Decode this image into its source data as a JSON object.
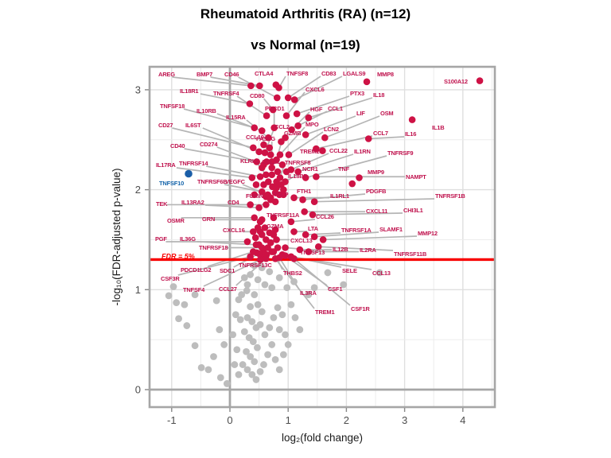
{
  "figure": {
    "title_line1": "Rheumatoid Arthritis (RA) (n=12)",
    "title_line2": "vs Normal (n=19)"
  },
  "chart_data": {
    "type": "scatter",
    "title": "Rheumatoid Arthritis (RA) (n=12) vs Normal (n=19)",
    "xlabel": "log₂(fold change)",
    "ylabel": "-log₁₀(FDR-adjusted p-value)",
    "xlim": [
      -1.38,
      4.55
    ],
    "ylim": [
      -0.18,
      3.23
    ],
    "x_ticks": [
      -1,
      0,
      1,
      2,
      3,
      4
    ],
    "y_ticks": [
      0,
      1,
      2,
      3
    ],
    "grid": "major and minor (0.5 steps), light gray; heavy gray zero lines",
    "legend": "none",
    "threshold": {
      "y": 1.301,
      "label": "FDR = 5%",
      "color": "#F80000"
    },
    "colors": {
      "up_point": "#CE1245",
      "gene_label": "#C0134E",
      "down_point": "#1A5EA8",
      "down_label": "#1464AA",
      "nonsignificant": "#BDBDBD",
      "leader_line": "#B5B5B5",
      "grid_minor": "#ECECEC",
      "grid_major": "#DFDFDF",
      "panel_border": "#A6A6A6"
    },
    "genes_format": [
      "name",
      "log2fc",
      "neglog10fdr",
      "label_px_x",
      "label_px_y",
      "no_leader_line"
    ],
    "genes_up": [
      [
        "AREG",
        0.36,
        3.04,
        199,
        96,
        0
      ],
      [
        "BMP7",
        0.51,
        3.04,
        247,
        96,
        0
      ],
      [
        "CD46",
        0.81,
        2.92,
        282,
        96,
        0
      ],
      [
        "CTLA4",
        0.79,
        3.05,
        320,
        95,
        0
      ],
      [
        "TNFSF8",
        0.84,
        3.02,
        360,
        95,
        0
      ],
      [
        "CD83",
        1.0,
        2.92,
        404,
        95,
        0
      ],
      [
        "LGALS9",
        1.11,
        2.9,
        431,
        95,
        0
      ],
      [
        "MMP8",
        2.35,
        3.08,
        474,
        96,
        1
      ],
      [
        "S100A12",
        4.29,
        3.09,
        558,
        105,
        1
      ],
      [
        "IL18R1",
        0.34,
        2.86,
        226,
        117,
        0
      ],
      [
        "TNFRSF4",
        0.63,
        2.74,
        268,
        120,
        0
      ],
      [
        "CD80",
        0.74,
        2.8,
        314,
        123,
        0
      ],
      [
        "CXCL6",
        0.97,
        2.74,
        384,
        115,
        0
      ],
      [
        "PTX3",
        1.15,
        2.76,
        440,
        120,
        0
      ],
      [
        "IL18",
        1.35,
        2.72,
        469,
        122,
        0
      ],
      [
        "TNFSF18",
        0.42,
        2.62,
        201,
        136,
        0
      ],
      [
        "IL10RB",
        0.55,
        2.59,
        247,
        142,
        0
      ],
      [
        "IL15RA",
        0.66,
        2.52,
        284,
        150,
        0
      ],
      [
        "PDCD1",
        0.76,
        2.62,
        333,
        139,
        0
      ],
      [
        "HGF",
        1.06,
        2.6,
        390,
        140,
        0
      ],
      [
        "CCL1",
        1.17,
        2.64,
        412,
        139,
        0
      ],
      [
        "LIF",
        1.3,
        2.55,
        448,
        145,
        0
      ],
      [
        "OSM",
        1.63,
        2.52,
        478,
        145,
        0
      ],
      [
        "IL1B",
        3.13,
        2.7,
        543,
        163,
        1
      ],
      [
        "CD27",
        0.4,
        2.42,
        199,
        160,
        0
      ],
      [
        "IL6ST",
        0.5,
        2.38,
        233,
        160,
        0
      ],
      [
        "CCL2",
        0.6,
        2.37,
        345,
        162,
        0
      ],
      [
        "MPO",
        0.86,
        2.35,
        384,
        159,
        0
      ],
      [
        "LCN2",
        1.01,
        2.35,
        407,
        165,
        0
      ],
      [
        "CCL7",
        1.48,
        2.41,
        469,
        170,
        0
      ],
      [
        "IL16",
        2.38,
        2.51,
        509,
        171,
        0
      ],
      [
        "CD40",
        0.46,
        2.28,
        214,
        186,
        0
      ],
      [
        "CD274",
        0.58,
        2.25,
        251,
        184,
        0
      ],
      [
        "CCL19",
        0.7,
        2.35,
        309,
        175,
        0
      ],
      [
        "FASLG",
        0.72,
        2.28,
        322,
        177,
        0
      ],
      [
        "GZMB",
        0.8,
        2.3,
        357,
        170,
        0
      ],
      [
        "TREM2",
        1.59,
        2.39,
        377,
        193,
        1
      ],
      [
        "CCL22",
        1.05,
        2.2,
        414,
        192,
        0
      ],
      [
        "IL1RN",
        1.17,
        2.18,
        445,
        193,
        0
      ],
      [
        "TNFRSF9",
        1.3,
        2.12,
        487,
        195,
        0
      ],
      [
        "IL17RA",
        0.38,
        2.12,
        196,
        210,
        0
      ],
      [
        "TNFRSF14",
        0.52,
        2.13,
        225,
        208,
        0
      ],
      [
        "KLRK1",
        0.62,
        2.15,
        302,
        205,
        0
      ],
      [
        "CCL21",
        0.72,
        2.15,
        329,
        206,
        0
      ],
      [
        "TNFRSF8",
        0.86,
        2.12,
        358,
        207,
        0
      ],
      [
        "NCR1",
        0.95,
        2.08,
        380,
        215,
        0
      ],
      [
        "TNF",
        2.1,
        2.06,
        425,
        215,
        0
      ],
      [
        "MMP9",
        2.22,
        2.12,
        462,
        219,
        0
      ],
      [
        "NAMPT",
        1.48,
        2.13,
        510,
        225,
        0
      ],
      [
        "TNFRSF6B",
        0.55,
        1.98,
        248,
        231,
        0
      ],
      [
        "VEGFC",
        0.65,
        1.95,
        283,
        231,
        0
      ],
      [
        "IL18BP",
        0.8,
        2.02,
        362,
        224,
        0
      ],
      [
        "FTH1",
        0.92,
        1.95,
        373,
        243,
        0
      ],
      [
        "IL1RL1",
        1.1,
        1.92,
        415,
        249,
        0
      ],
      [
        "PDGFB",
        1.25,
        1.9,
        460,
        243,
        0
      ],
      [
        "TNFRSF1B",
        1.45,
        1.88,
        547,
        249,
        0
      ],
      [
        "TEK",
        0.35,
        1.85,
        196,
        259,
        0
      ],
      [
        "IL13RA2",
        0.5,
        1.82,
        228,
        257,
        0
      ],
      [
        "CD4",
        0.62,
        1.85,
        286,
        257,
        0
      ],
      [
        "FURIN",
        0.7,
        1.92,
        309,
        249,
        0
      ],
      [
        "TSLP",
        0.78,
        1.97,
        344,
        247,
        0
      ],
      [
        "CXCL11",
        1.28,
        1.78,
        460,
        268,
        0
      ],
      [
        "CHI3L1",
        1.42,
        1.75,
        507,
        267,
        0
      ],
      [
        "OSMR",
        0.42,
        1.72,
        210,
        280,
        0
      ],
      [
        "GRN",
        0.55,
        1.7,
        254,
        278,
        0
      ],
      [
        "TNFRSF11A",
        0.75,
        1.72,
        335,
        273,
        0
      ],
      [
        "CCL26",
        1.05,
        1.68,
        397,
        275,
        0
      ],
      [
        "CXCL16",
        0.52,
        1.58,
        280,
        292,
        0
      ],
      [
        "GZMA",
        0.78,
        1.6,
        335,
        287,
        0
      ],
      [
        "LTA",
        1.1,
        1.58,
        387,
        290,
        0
      ],
      [
        "TNFRSF1A",
        1.3,
        1.55,
        429,
        292,
        0
      ],
      [
        "SLAMF1",
        1.45,
        1.53,
        477,
        291,
        0
      ],
      [
        "MMP12",
        1.6,
        1.5,
        525,
        296,
        0
      ],
      [
        "PGF",
        0.3,
        1.48,
        195,
        303,
        0
      ],
      [
        "IL36G",
        0.45,
        1.45,
        226,
        303,
        0
      ],
      [
        "CXCL13",
        0.8,
        1.5,
        365,
        305,
        0
      ],
      [
        "TNFSF13",
        0.95,
        1.42,
        377,
        320,
        0
      ],
      [
        "IL12B",
        1.2,
        1.4,
        418,
        316,
        0
      ],
      [
        "IL2RA",
        1.35,
        1.38,
        452,
        317,
        0
      ],
      [
        "TNFRSF11B",
        1.52,
        1.43,
        495,
        322,
        0
      ],
      [
        "TNFRSF18",
        0.55,
        1.42,
        250,
        314,
        0
      ],
      [
        "TNFRSF13C",
        0.58,
        1.35,
        300,
        336,
        0
      ],
      [
        "PDCD1LG2",
        0.4,
        1.38,
        227,
        342,
        0
      ],
      [
        "SDC1",
        0.5,
        1.36,
        276,
        343,
        0
      ],
      [
        "THBS2",
        0.75,
        1.38,
        356,
        346,
        0
      ],
      [
        "SELE",
        0.9,
        1.35,
        430,
        343,
        0
      ],
      [
        "CCL13",
        1.05,
        1.33,
        468,
        346,
        0
      ],
      [
        "CSF3R",
        0.35,
        1.33,
        202,
        353,
        0
      ],
      [
        "TNFSF4",
        0.52,
        1.3,
        230,
        367,
        0
      ],
      [
        "CCL27",
        0.62,
        1.31,
        275,
        366,
        0
      ],
      [
        "IL3RA",
        0.85,
        1.32,
        377,
        371,
        0
      ],
      [
        "CSF1",
        0.95,
        1.34,
        412,
        366,
        0
      ],
      [
        "TREM1",
        0.78,
        1.31,
        396,
        395,
        0
      ],
      [
        "CSF1R",
        1.1,
        1.31,
        441,
        391,
        0
      ]
    ],
    "genes_down": [
      [
        "TNFSF10",
        -0.71,
        2.16,
        200,
        233,
        1
      ]
    ],
    "unlabeled_significant": [
      [
        0.48,
        1.62
      ],
      [
        0.55,
        1.55
      ],
      [
        0.62,
        1.5
      ],
      [
        0.5,
        1.45
      ],
      [
        0.58,
        1.4
      ],
      [
        0.44,
        1.52
      ],
      [
        0.65,
        1.42
      ],
      [
        0.7,
        1.47
      ],
      [
        0.6,
        1.62
      ],
      [
        0.68,
        1.57
      ],
      [
        0.52,
        1.68
      ],
      [
        0.46,
        1.37
      ],
      [
        0.63,
        1.35
      ],
      [
        0.56,
        1.33
      ],
      [
        0.72,
        1.38
      ],
      [
        0.4,
        1.58
      ],
      [
        0.75,
        1.55
      ],
      [
        0.82,
        1.42
      ],
      [
        0.58,
        2.05
      ],
      [
        0.66,
        2.08
      ],
      [
        0.73,
        2.03
      ],
      [
        0.8,
        2.08
      ],
      [
        0.88,
        2.05
      ],
      [
        0.62,
        1.93
      ],
      [
        0.7,
        1.9
      ],
      [
        0.78,
        1.88
      ],
      [
        0.85,
        1.95
      ],
      [
        0.92,
        2.0
      ],
      [
        0.55,
        2.22
      ],
      [
        0.63,
        2.28
      ],
      [
        0.72,
        2.22
      ],
      [
        0.82,
        2.18
      ],
      [
        0.9,
        2.25
      ],
      [
        0.97,
        2.18
      ],
      [
        0.58,
        2.45
      ],
      [
        0.68,
        2.42
      ],
      [
        0.88,
        2.48
      ],
      [
        0.95,
        2.52
      ],
      [
        0.45,
        2.05
      ],
      [
        0.42,
        1.95
      ]
    ],
    "nonsignificant": [
      [
        -1.05,
        0.94
      ],
      [
        -0.92,
        0.87
      ],
      [
        -0.78,
        0.85
      ],
      [
        -0.88,
        0.71
      ],
      [
        -0.74,
        0.64
      ],
      [
        -0.6,
        0.44
      ],
      [
        -0.49,
        0.22
      ],
      [
        -0.37,
        0.2
      ],
      [
        -0.23,
        0.89
      ],
      [
        -0.28,
        0.33
      ],
      [
        -0.16,
        0.12
      ],
      [
        -0.05,
        0.06
      ],
      [
        -0.6,
        0.95
      ],
      [
        -0.97,
        1.03
      ],
      [
        -0.1,
        0.45
      ],
      [
        -0.18,
        0.6
      ],
      [
        0.29,
        0.99
      ],
      [
        0.42,
        0.95
      ],
      [
        0.35,
        0.83
      ],
      [
        0.48,
        0.85
      ],
      [
        0.55,
        0.78
      ],
      [
        0.3,
        0.72
      ],
      [
        0.38,
        0.68
      ],
      [
        0.45,
        0.62
      ],
      [
        0.52,
        0.65
      ],
      [
        0.25,
        0.58
      ],
      [
        0.33,
        0.52
      ],
      [
        0.4,
        0.48
      ],
      [
        0.47,
        0.42
      ],
      [
        0.28,
        0.38
      ],
      [
        0.35,
        0.33
      ],
      [
        0.42,
        0.28
      ],
      [
        0.22,
        0.25
      ],
      [
        0.3,
        0.2
      ],
      [
        0.38,
        0.15
      ],
      [
        0.45,
        0.1
      ],
      [
        0.52,
        0.18
      ],
      [
        0.58,
        0.25
      ],
      [
        0.65,
        0.35
      ],
      [
        0.72,
        0.45
      ],
      [
        0.6,
        0.55
      ],
      [
        0.68,
        0.62
      ],
      [
        0.75,
        0.72
      ],
      [
        0.82,
        0.82
      ],
      [
        0.9,
        0.75
      ],
      [
        0.85,
        0.6
      ],
      [
        0.95,
        0.55
      ],
      [
        0.78,
        0.3
      ],
      [
        0.85,
        0.2
      ],
      [
        0.92,
        0.35
      ],
      [
        1.0,
        0.45
      ],
      [
        1.05,
        0.85
      ],
      [
        1.12,
        0.72
      ],
      [
        1.2,
        0.6
      ],
      [
        0.15,
        0.9
      ],
      [
        0.1,
        0.75
      ],
      [
        0.05,
        0.55
      ],
      [
        0.12,
        0.4
      ],
      [
        0.18,
        0.7
      ],
      [
        0.08,
        0.25
      ],
      [
        0.15,
        0.15
      ],
      [
        0.98,
        1.02
      ],
      [
        1.1,
        1.08
      ],
      [
        0.6,
        1.05
      ],
      [
        0.72,
        1.02
      ],
      [
        0.48,
        1.1
      ],
      [
        0.35,
        1.15
      ],
      [
        0.25,
        1.12
      ],
      [
        0.85,
        1.12
      ],
      [
        1.68,
        1.17
      ],
      [
        1.95,
        1.05
      ],
      [
        2.57,
        1.17
      ],
      [
        1.35,
        0.95
      ],
      [
        1.45,
        1.02
      ],
      [
        0.55,
        1.22
      ],
      [
        0.42,
        1.24
      ],
      [
        0.68,
        1.18
      ],
      [
        0.3,
        1.05
      ],
      [
        0.2,
        0.95
      ]
    ]
  }
}
